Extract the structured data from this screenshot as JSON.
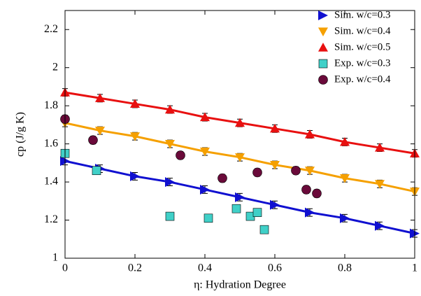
{
  "chart_data": {
    "type": "scatter",
    "xlabel": "η: Hydration Degree",
    "ylabel": "cp (J/g K)",
    "xlim": [
      0,
      1
    ],
    "ylim": [
      1,
      2.3
    ],
    "xticks": [
      0,
      0.2,
      0.4,
      0.6,
      0.8,
      1
    ],
    "yticks": [
      1,
      1.2,
      1.4,
      1.6,
      1.8,
      2,
      2.2
    ],
    "legend": "upper-right",
    "series": [
      {
        "name": "Sim. w/c=0.3",
        "color": "#1010d0",
        "marker": "triangle-right",
        "fit_line": true,
        "x": [
          0,
          0.1,
          0.2,
          0.3,
          0.4,
          0.5,
          0.6,
          0.7,
          0.8,
          0.9,
          1
        ],
        "values": [
          1.51,
          1.47,
          1.43,
          1.4,
          1.36,
          1.32,
          1.28,
          1.24,
          1.21,
          1.17,
          1.13
        ],
        "errors": [
          0.02,
          0.02,
          0.02,
          0.02,
          0.02,
          0.02,
          0.02,
          0.02,
          0.02,
          0.02,
          0.02
        ]
      },
      {
        "name": "Sim. w/c=0.4",
        "color": "#f5a000",
        "marker": "triangle-down",
        "fit_line": true,
        "x": [
          0,
          0.1,
          0.2,
          0.3,
          0.4,
          0.5,
          0.6,
          0.7,
          0.8,
          0.9,
          1
        ],
        "values": [
          1.71,
          1.67,
          1.64,
          1.6,
          1.56,
          1.53,
          1.49,
          1.46,
          1.42,
          1.39,
          1.35
        ],
        "errors": [
          0.02,
          0.02,
          0.02,
          0.02,
          0.02,
          0.02,
          0.02,
          0.02,
          0.02,
          0.02,
          0.02
        ]
      },
      {
        "name": "Sim. w/c=0.5",
        "color": "#e81010",
        "marker": "triangle-up",
        "fit_line": true,
        "x": [
          0,
          0.1,
          0.2,
          0.3,
          0.4,
          0.5,
          0.6,
          0.7,
          0.8,
          0.9,
          1
        ],
        "values": [
          1.87,
          1.84,
          1.81,
          1.78,
          1.74,
          1.71,
          1.68,
          1.65,
          1.61,
          1.58,
          1.55
        ],
        "errors": [
          0.02,
          0.02,
          0.02,
          0.02,
          0.02,
          0.02,
          0.02,
          0.02,
          0.02,
          0.02,
          0.02
        ]
      },
      {
        "name": "Exp. w/c=0.3",
        "color": "#40d0c8",
        "marker": "square",
        "fit_line": false,
        "x": [
          0,
          0.09,
          0.3,
          0.41,
          0.49,
          0.53,
          0.55,
          0.57
        ],
        "values": [
          1.55,
          1.46,
          1.22,
          1.21,
          1.26,
          1.22,
          1.24,
          1.15
        ],
        "errors": [
          0.02,
          0.02,
          0.02,
          0.02,
          0.02,
          0.02,
          0.02,
          0.02
        ]
      },
      {
        "name": "Exp. w/c=0.4",
        "color": "#6a0a3a",
        "marker": "circle",
        "fit_line": false,
        "x": [
          0,
          0.08,
          0.33,
          0.45,
          0.55,
          0.66,
          0.69,
          0.72
        ],
        "values": [
          1.73,
          1.62,
          1.54,
          1.42,
          1.45,
          1.46,
          1.36,
          1.34
        ],
        "errors": [
          0.02,
          0.02,
          0.02,
          0.02,
          0.02,
          0.02,
          0.02,
          0.02
        ]
      }
    ]
  }
}
